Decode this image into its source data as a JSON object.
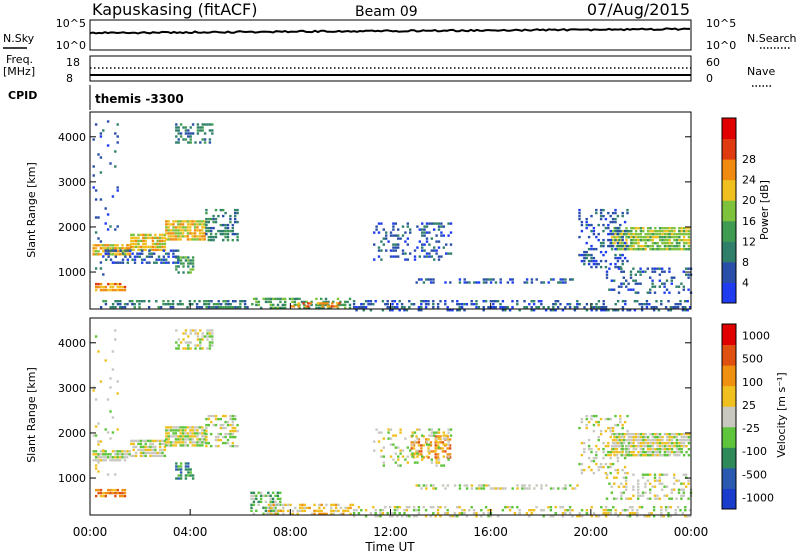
{
  "header": {
    "station": "Kapuskasing (fitACF)",
    "beam": "Beam 09",
    "date": "07/Aug/2015"
  },
  "top_panel": {
    "left_label": "N.Sky",
    "left_ticks": [
      "10^5",
      "10^0"
    ],
    "right_label": "N.Search",
    "right_ticks": [
      "10^5",
      "10^0"
    ]
  },
  "freq_panel": {
    "left_label": "Freq.",
    "left_unit": "[MHz]",
    "left_ticks": [
      "18",
      "8"
    ],
    "right_label": "Nave",
    "right_ticks": [
      "60",
      "0"
    ]
  },
  "cpid_panel": {
    "label": "CPID",
    "value": "themis -3300"
  },
  "colors": {
    "power": [
      "#1f3cf0",
      "#2a4fa8",
      "#2f7f6a",
      "#3f9a52",
      "#7ec23c",
      "#f0c020",
      "#f08a10",
      "#e03a10",
      "#e00000"
    ],
    "velocity": [
      "#1a3ccc",
      "#2a5ab0",
      "#2f8a5a",
      "#5ec43c",
      "#c8c8c0",
      "#f0c020",
      "#f09010",
      "#e05010",
      "#e00000"
    ]
  },
  "chart_data": [
    {
      "type": "heatmap",
      "name": "power",
      "ylabel": "Slant Range [km]",
      "yticks": [
        1000,
        2000,
        3000,
        4000
      ],
      "ylim": [
        180,
        4550
      ],
      "xlim": [
        0,
        24
      ],
      "colorbar": {
        "label": "Power [dB]",
        "ticks": [
          "4",
          "8",
          "12",
          "16",
          "20",
          "24",
          "28"
        ]
      },
      "blobs": [
        {
          "x0": 0.1,
          "x1": 1.6,
          "y0": 1380,
          "y1": 1620,
          "level": 5,
          "density": 0.85
        },
        {
          "x0": 1.6,
          "x1": 3.0,
          "y0": 1500,
          "y1": 1850,
          "level": 5,
          "density": 0.85
        },
        {
          "x0": 3.0,
          "x1": 4.6,
          "y0": 1750,
          "y1": 2150,
          "level": 5,
          "density": 0.85
        },
        {
          "x0": 4.6,
          "x1": 5.9,
          "y0": 1700,
          "y1": 2400,
          "level": 2,
          "density": 0.5
        },
        {
          "x0": 0.2,
          "x1": 1.4,
          "y0": 600,
          "y1": 760,
          "level": 6,
          "density": 0.8
        },
        {
          "x0": 3.4,
          "x1": 4.9,
          "y0": 3850,
          "y1": 4300,
          "level": 2,
          "density": 0.45
        },
        {
          "x0": 3.4,
          "x1": 4.1,
          "y0": 1000,
          "y1": 1350,
          "level": 3,
          "density": 0.6
        },
        {
          "x0": 0.6,
          "x1": 3.5,
          "y0": 1200,
          "y1": 1500,
          "level": 1,
          "density": 0.45
        },
        {
          "x0": 0.3,
          "x1": 6.5,
          "y0": 200,
          "y1": 380,
          "level": 2,
          "density": 0.5
        },
        {
          "x0": 6.5,
          "x1": 10.5,
          "y0": 180,
          "y1": 430,
          "level": 3,
          "density": 0.55
        },
        {
          "x0": 8.0,
          "x1": 10.0,
          "y0": 200,
          "y1": 330,
          "level": 6,
          "density": 0.5
        },
        {
          "x0": 10.5,
          "x1": 24.0,
          "y0": 180,
          "y1": 380,
          "level": 1,
          "density": 0.4
        },
        {
          "x0": 11.3,
          "x1": 14.4,
          "y0": 1250,
          "y1": 2100,
          "level": 1,
          "density": 0.3
        },
        {
          "x0": 13.0,
          "x1": 19.5,
          "y0": 760,
          "y1": 860,
          "level": 1,
          "density": 0.45
        },
        {
          "x0": 20.8,
          "x1": 23.9,
          "y0": 1500,
          "y1": 2000,
          "level": 4,
          "density": 0.85
        },
        {
          "x0": 19.5,
          "x1": 21.5,
          "y0": 1100,
          "y1": 2400,
          "level": 1,
          "density": 0.3
        },
        {
          "x0": 20.5,
          "x1": 24.0,
          "y0": 550,
          "y1": 1100,
          "level": 1,
          "density": 0.3
        },
        {
          "x0": 0.1,
          "x1": 1.1,
          "y0": 800,
          "y1": 4500,
          "level": 1,
          "density": 0.05
        }
      ]
    },
    {
      "type": "heatmap",
      "name": "velocity",
      "ylabel": "Slant Range [km]",
      "yticks": [
        1000,
        2000,
        3000,
        4000
      ],
      "ylim": [
        180,
        4550
      ],
      "xlim": [
        0,
        24
      ],
      "xticks": [
        "00:00",
        "04:00",
        "08:00",
        "12:00",
        "16:00",
        "20:00",
        "00:00"
      ],
      "xlabel": "Time UT",
      "colorbar": {
        "label": "Velocity [m s⁻¹]",
        "ticks": [
          "1000",
          "500",
          "100",
          "25",
          "-25",
          "-100",
          "-500",
          "-1000"
        ]
      },
      "blobs": [
        {
          "x0": 0.1,
          "x1": 1.6,
          "y0": 1380,
          "y1": 1620,
          "level": 4,
          "density": 0.85
        },
        {
          "x0": 1.6,
          "x1": 3.0,
          "y0": 1500,
          "y1": 1850,
          "level": 4,
          "density": 0.85
        },
        {
          "x0": 3.0,
          "x1": 4.6,
          "y0": 1750,
          "y1": 2150,
          "level": 4,
          "density": 0.85
        },
        {
          "x0": 4.6,
          "x1": 5.9,
          "y0": 1700,
          "y1": 2400,
          "level": 4,
          "density": 0.5
        },
        {
          "x0": 0.2,
          "x1": 1.4,
          "y0": 600,
          "y1": 760,
          "level": 6,
          "density": 0.8
        },
        {
          "x0": 3.4,
          "x1": 4.9,
          "y0": 3850,
          "y1": 4300,
          "level": 4,
          "density": 0.45
        },
        {
          "x0": 3.4,
          "x1": 4.1,
          "y0": 1000,
          "y1": 1350,
          "level": 2,
          "density": 0.6
        },
        {
          "x0": 6.4,
          "x1": 7.6,
          "y0": 200,
          "y1": 700,
          "level": 3,
          "density": 0.55
        },
        {
          "x0": 7.0,
          "x1": 10.5,
          "y0": 180,
          "y1": 430,
          "level": 5,
          "density": 0.55
        },
        {
          "x0": 10.5,
          "x1": 24.0,
          "y0": 180,
          "y1": 380,
          "level": 4,
          "density": 0.4
        },
        {
          "x0": 12.8,
          "x1": 14.4,
          "y0": 1450,
          "y1": 1950,
          "level": 6,
          "density": 0.55
        },
        {
          "x0": 11.3,
          "x1": 14.4,
          "y0": 1250,
          "y1": 2100,
          "level": 4,
          "density": 0.25
        },
        {
          "x0": 13.0,
          "x1": 19.5,
          "y0": 760,
          "y1": 860,
          "level": 4,
          "density": 0.45
        },
        {
          "x0": 20.8,
          "x1": 23.9,
          "y0": 1500,
          "y1": 2000,
          "level": 4,
          "density": 0.85
        },
        {
          "x0": 19.5,
          "x1": 21.5,
          "y0": 1100,
          "y1": 2400,
          "level": 4,
          "density": 0.3
        },
        {
          "x0": 20.5,
          "x1": 24.0,
          "y0": 550,
          "y1": 1100,
          "level": 4,
          "density": 0.3
        },
        {
          "x0": 0.1,
          "x1": 1.1,
          "y0": 800,
          "y1": 4500,
          "level": 4,
          "density": 0.05
        }
      ]
    }
  ]
}
